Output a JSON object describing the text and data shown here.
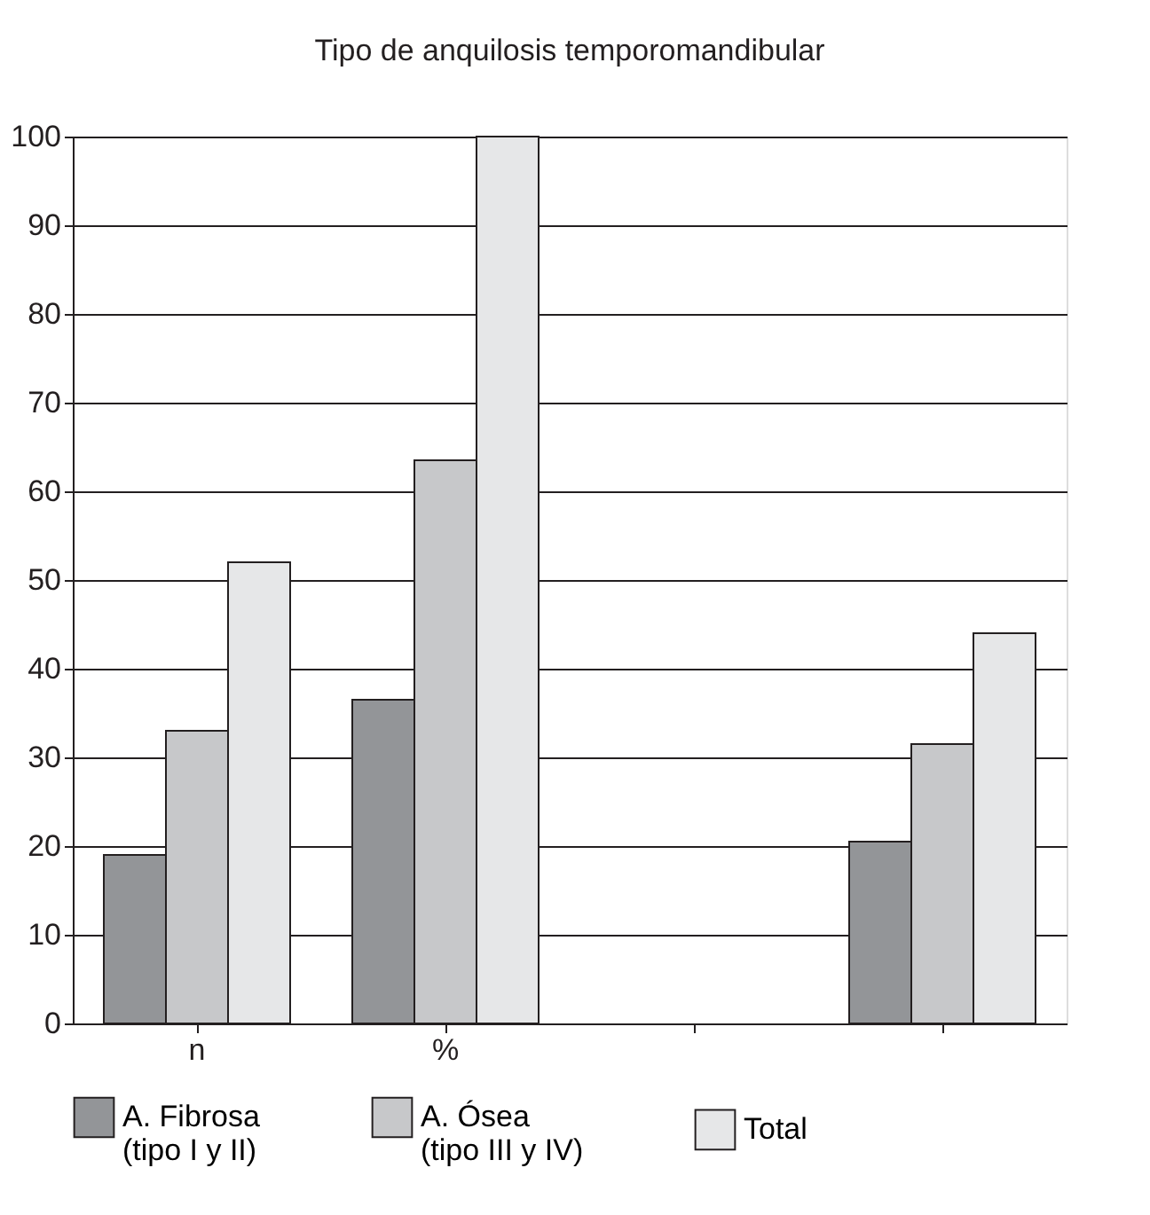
{
  "chart_data": {
    "type": "bar",
    "title": "Tipo de anquilosis temporomandibular",
    "categories": [
      "n",
      "%",
      null,
      null
    ],
    "series": [
      {
        "name": "A. Fibrosa\n(tipo I y II)",
        "color": "#939598",
        "values": [
          19,
          36.5,
          null,
          20.5
        ]
      },
      {
        "name": "A. Ósea\n(tipo III y IV)",
        "color": "#c7c8ca",
        "values": [
          33,
          63.5,
          null,
          31.5
        ]
      },
      {
        "name": "Total",
        "color": "#e6e7e8",
        "values": [
          52,
          100,
          null,
          44
        ]
      }
    ],
    "ylim": [
      0,
      100
    ],
    "yticks": [
      0,
      10,
      20,
      30,
      40,
      50,
      60,
      70,
      80,
      90,
      100
    ],
    "grid": "y",
    "legend": "bottom"
  }
}
